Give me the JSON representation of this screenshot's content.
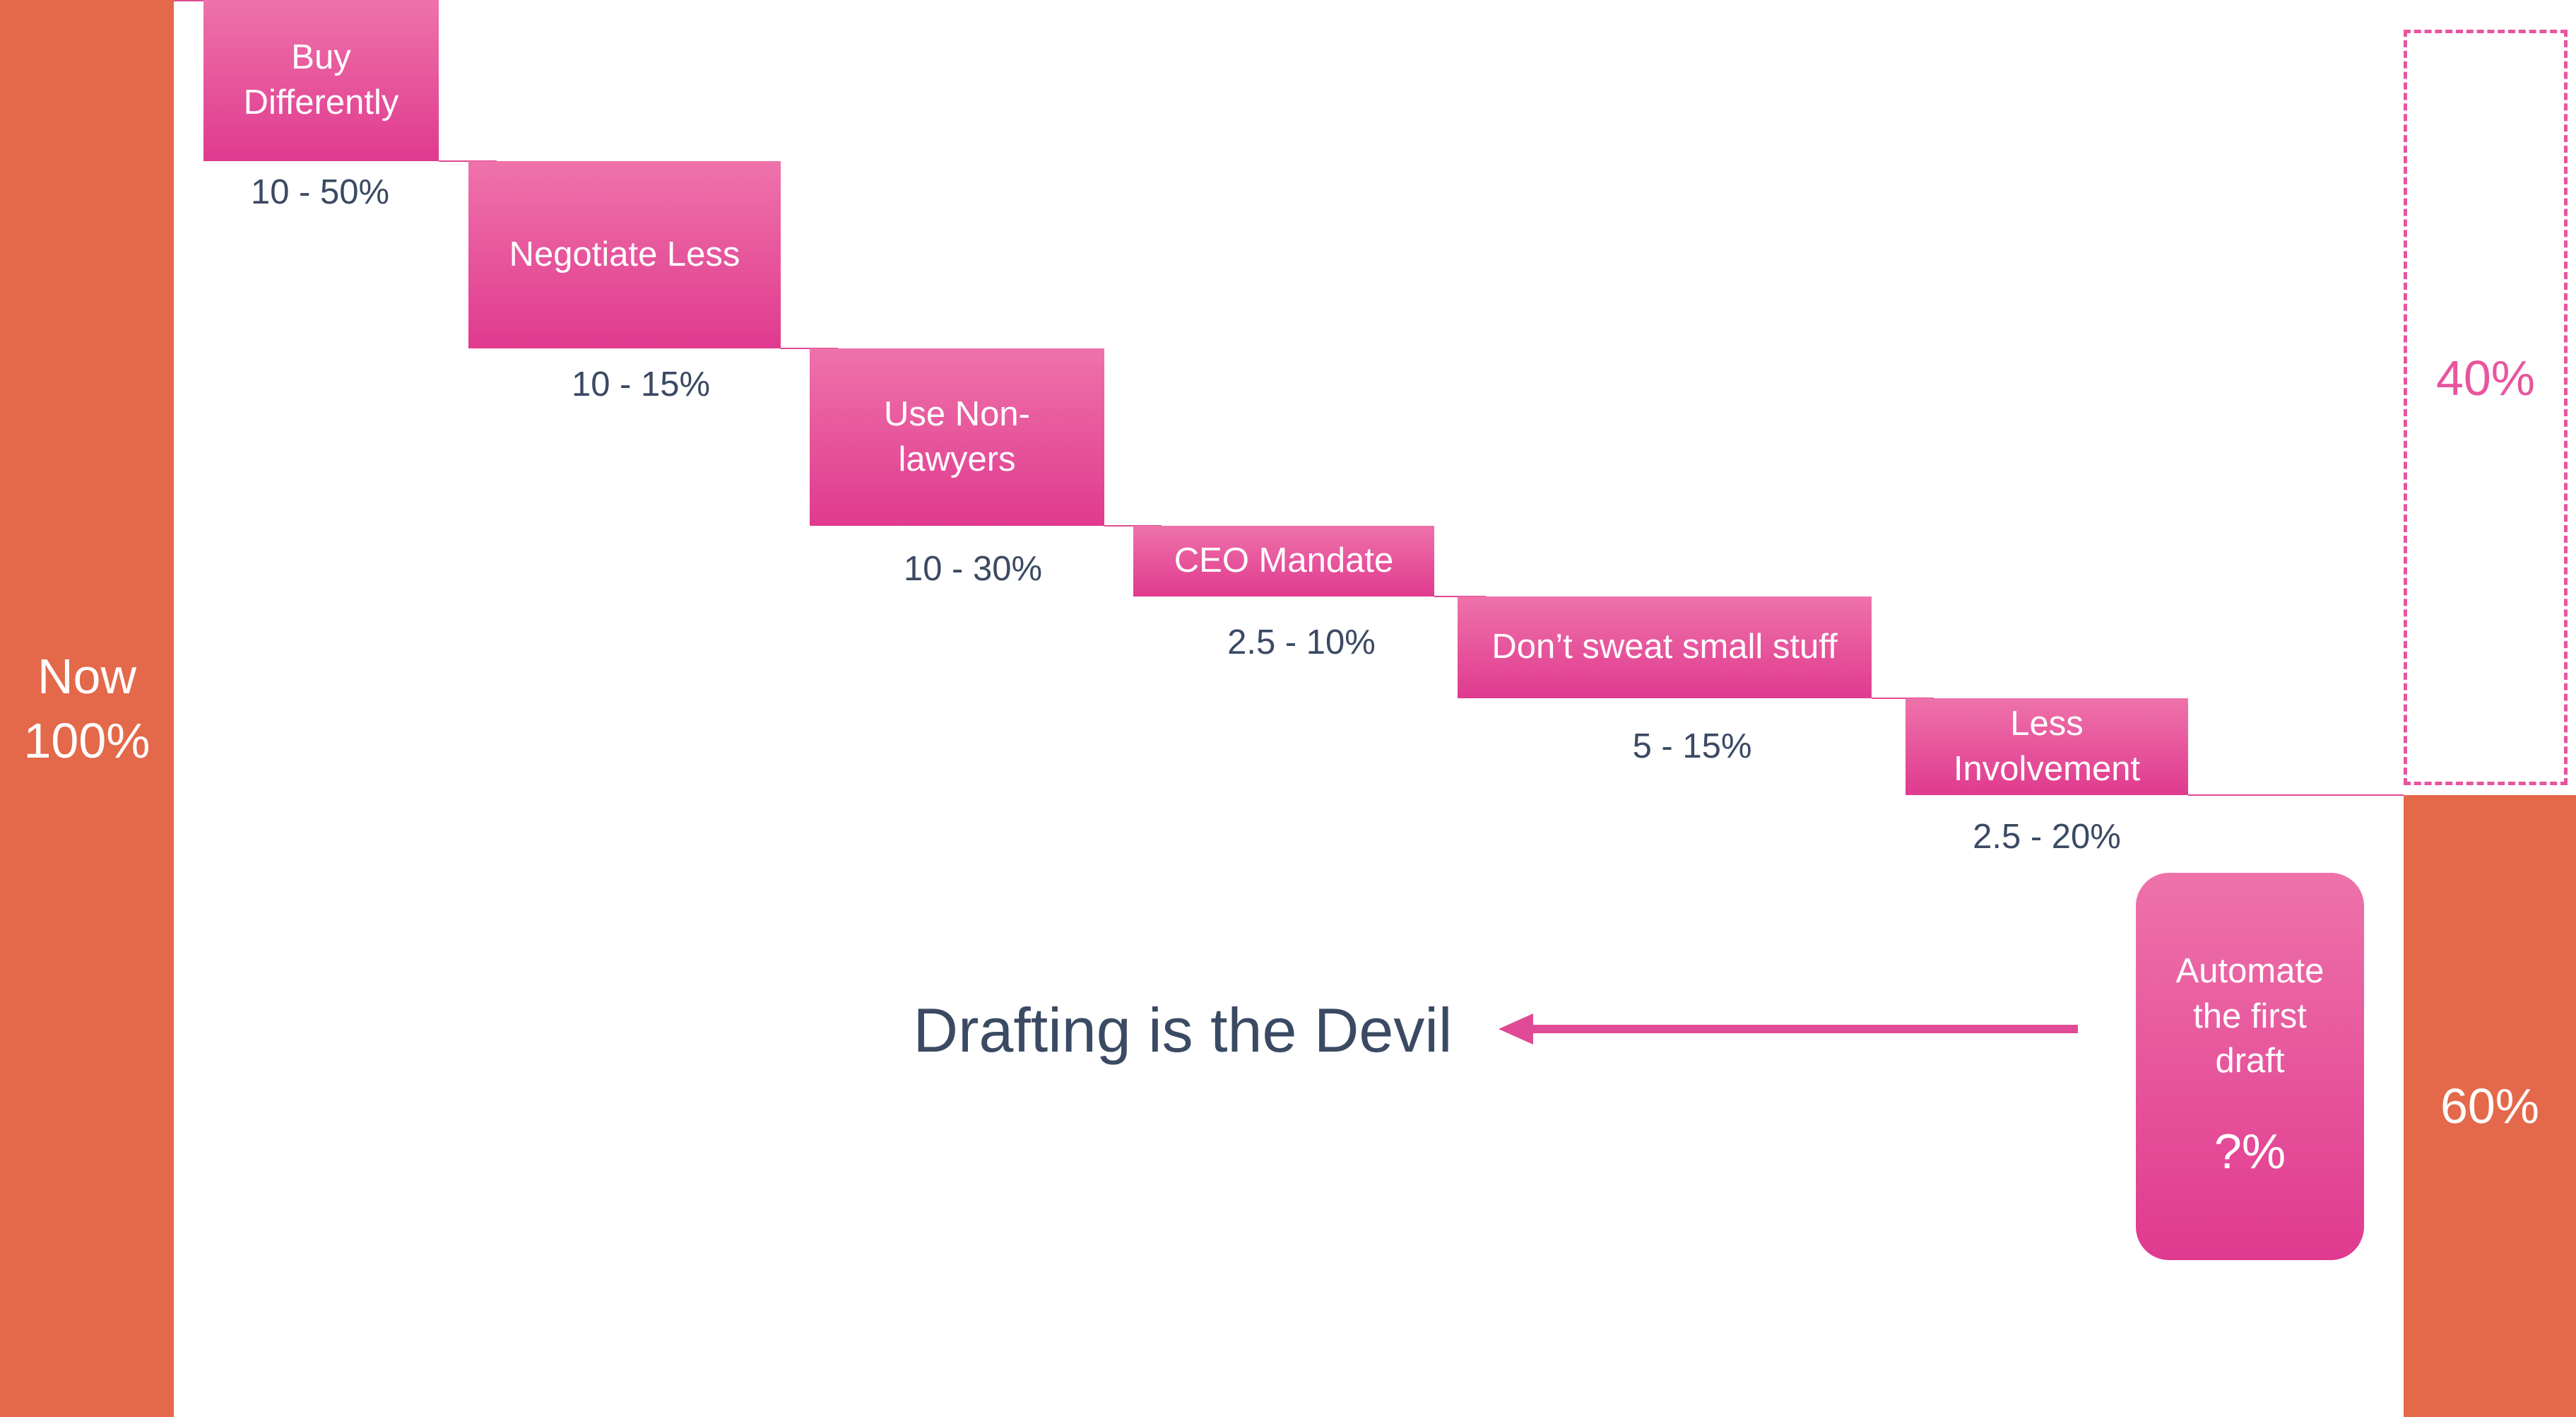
{
  "start": {
    "lines": [
      "Now",
      "100%"
    ]
  },
  "steps": [
    {
      "lines": [
        "Buy",
        "Differently"
      ],
      "range": "10 - 50%"
    },
    {
      "lines": [
        "Negotiate Less"
      ],
      "range": "10 - 15%"
    },
    {
      "lines": [
        "Use Non-",
        "lawyers"
      ],
      "range": "10 - 30%"
    },
    {
      "lines": [
        "CEO Mandate"
      ],
      "range": "2.5 - 10%"
    },
    {
      "lines": [
        "Don’t sweat small stuff"
      ],
      "range": "5 - 15%"
    },
    {
      "lines": [
        "Less",
        "Involvement"
      ],
      "range": "2.5 - 20%"
    }
  ],
  "savings": "40%",
  "remaining": "60%",
  "automate": {
    "lines": [
      "Automate",
      "the first",
      "draft"
    ],
    "value": "?%"
  },
  "callout": "Drafting is the Devil"
}
